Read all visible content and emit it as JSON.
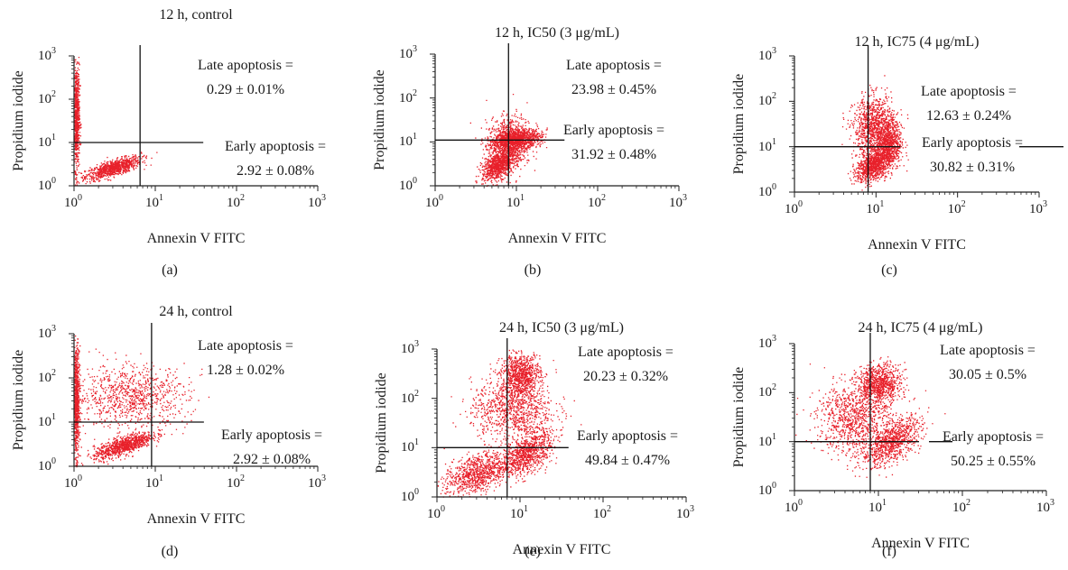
{
  "chart_data": [
    {
      "type": "scatter",
      "panel_label": "(a)",
      "title": "12 h, control",
      "xlabel": "Annexin V FITC",
      "ylabel": "Propidium iodide",
      "x_scale": "log",
      "y_scale": "log",
      "xlim": [
        1,
        1000
      ],
      "ylim": [
        1,
        1000
      ],
      "x_ticks": [
        {
          "base": "10",
          "exp": "0"
        },
        {
          "base": "10",
          "exp": "1"
        },
        {
          "base": "10",
          "exp": "2"
        },
        {
          "base": "10",
          "exp": "3"
        }
      ],
      "y_ticks": [
        {
          "base": "10",
          "exp": "0"
        },
        {
          "base": "10",
          "exp": "1"
        },
        {
          "base": "10",
          "exp": "2"
        },
        {
          "base": "10",
          "exp": "3"
        }
      ],
      "gate": {
        "x": 6.5,
        "y": 10
      },
      "point_color": "#e8202a",
      "clusters": [
        {
          "x_center": 3.0,
          "y_center": 2.6,
          "x_spread_decades": 0.17,
          "y_spread_decades": 0.09,
          "slope": 0.55
        },
        {
          "x_center": 1.05,
          "y_center": 40,
          "x_spread_decades": 0.02,
          "y_spread_decades": 0.6
        }
      ],
      "annotations": {
        "late_label": "Late apoptosis =",
        "late_value": "0.29 ± 0.01%",
        "early_label": "Early apoptosis =",
        "early_value": "2.92 ± 0.08%"
      }
    },
    {
      "type": "scatter",
      "panel_label": "(b)",
      "title": "12 h, IC50 (3 μg/mL)",
      "xlabel": "Annexin V FITC",
      "ylabel": "Propidium iodide",
      "x_scale": "log",
      "y_scale": "log",
      "xlim": [
        1,
        1000
      ],
      "ylim": [
        1,
        1000
      ],
      "x_ticks": [
        {
          "base": "10",
          "exp": "0"
        },
        {
          "base": "10",
          "exp": "1"
        },
        {
          "base": "10",
          "exp": "2"
        },
        {
          "base": "10",
          "exp": "3"
        }
      ],
      "y_ticks": [
        {
          "base": "10",
          "exp": "0"
        },
        {
          "base": "10",
          "exp": "1"
        },
        {
          "base": "10",
          "exp": "2"
        },
        {
          "base": "10",
          "exp": "3"
        }
      ],
      "gate": {
        "x": 8,
        "y": 11
      },
      "point_color": "#e8202a",
      "clusters": [
        {
          "x_center": 8,
          "y_center": 10,
          "x_spread_decades": 0.14,
          "y_spread_decades": 0.3,
          "slope": 0.4
        },
        {
          "x_center": 6,
          "y_center": 3,
          "x_spread_decades": 0.1,
          "y_spread_decades": 0.15,
          "slope": 0.8
        },
        {
          "x_center": 10,
          "y_center": 12,
          "x_spread_decades": 0.15,
          "y_spread_decades": 0.1,
          "slope": 0.2
        }
      ],
      "annotations": {
        "late_label": "Late apoptosis =",
        "late_value": "23.98 ± 0.45%",
        "early_label": "Early apoptosis =",
        "early_value": "31.92 ± 0.48%"
      }
    },
    {
      "type": "scatter",
      "panel_label": "(c)",
      "title": "12 h, IC75 (4 μg/mL)",
      "xlabel": "Annexin V FITC",
      "ylabel": "Propidium iodide",
      "x_scale": "log",
      "y_scale": "log",
      "xlim": [
        1,
        1000
      ],
      "ylim": [
        1,
        1000
      ],
      "x_ticks": [
        {
          "base": "10",
          "exp": "0"
        },
        {
          "base": "10",
          "exp": "1"
        },
        {
          "base": "10",
          "exp": "2"
        },
        {
          "base": "10",
          "exp": "3"
        }
      ],
      "y_ticks": [
        {
          "base": "10",
          "exp": "0"
        },
        {
          "base": "10",
          "exp": "1"
        },
        {
          "base": "10",
          "exp": "2"
        },
        {
          "base": "10",
          "exp": "3"
        }
      ],
      "gate": {
        "x": 8,
        "y": 10
      },
      "point_color": "#e8202a",
      "clusters": [
        {
          "x_center": 9,
          "y_center": 30,
          "x_spread_decades": 0.12,
          "y_spread_decades": 0.32,
          "slope": 0.3
        },
        {
          "x_center": 9,
          "y_center": 4,
          "x_spread_decades": 0.1,
          "y_spread_decades": 0.16,
          "slope": 0.8
        },
        {
          "x_center": 14,
          "y_center": 12,
          "x_spread_decades": 0.08,
          "y_spread_decades": 0.3,
          "slope": 0.2
        }
      ],
      "annotations": {
        "late_label": "Late apoptosis =",
        "late_value": "12.63 ± 0.24%",
        "early_label": "Early apoptosis =",
        "early_value": "30.82 ± 0.31%"
      }
    },
    {
      "type": "scatter",
      "panel_label": "(d)",
      "title": "24 h, control",
      "xlabel": "Annexin V FITC",
      "ylabel": "Propidium iodide",
      "x_scale": "log",
      "y_scale": "log",
      "xlim": [
        1,
        1000
      ],
      "ylim": [
        1,
        1000
      ],
      "x_ticks": [
        {
          "base": "10",
          "exp": "0"
        },
        {
          "base": "10",
          "exp": "1"
        },
        {
          "base": "10",
          "exp": "2"
        },
        {
          "base": "10",
          "exp": "3"
        }
      ],
      "y_ticks": [
        {
          "base": "10",
          "exp": "0"
        },
        {
          "base": "10",
          "exp": "1"
        },
        {
          "base": "10",
          "exp": "2"
        },
        {
          "base": "10",
          "exp": "3"
        }
      ],
      "gate": {
        "x": 9,
        "y": 10
      },
      "point_color": "#e8202a",
      "clusters": [
        {
          "x_center": 4,
          "y_center": 3,
          "x_spread_decades": 0.18,
          "y_spread_decades": 0.1,
          "slope": 0.6
        },
        {
          "x_center": 1.05,
          "y_center": 30,
          "x_spread_decades": 0.02,
          "y_spread_decades": 0.6
        },
        {
          "x_center": 5,
          "y_center": 40,
          "x_spread_decades": 0.35,
          "y_spread_decades": 0.35
        }
      ],
      "annotations": {
        "late_label": "Late apoptosis =",
        "late_value": "1.28 ± 0.02%",
        "early_label": "Early apoptosis =",
        "early_value": "2.92 ± 0.08%"
      }
    },
    {
      "type": "scatter",
      "panel_label": "(e)",
      "title": "24 h, IC50 (3 μg/mL)",
      "xlabel": "Annexin V FITC",
      "ylabel": "Propidium iodide",
      "x_scale": "log",
      "y_scale": "log",
      "xlim": [
        1,
        1000
      ],
      "ylim": [
        1,
        1000
      ],
      "x_ticks": [
        {
          "base": "10",
          "exp": "0"
        },
        {
          "base": "10",
          "exp": "1"
        },
        {
          "base": "10",
          "exp": "2"
        },
        {
          "base": "10",
          "exp": "3"
        }
      ],
      "y_ticks": [
        {
          "base": "10",
          "exp": "0"
        },
        {
          "base": "10",
          "exp": "1"
        },
        {
          "base": "10",
          "exp": "2"
        },
        {
          "base": "10",
          "exp": "3"
        }
      ],
      "gate": {
        "x": 7,
        "y": 10
      },
      "point_color": "#e8202a",
      "clusters": [
        {
          "x_center": 10,
          "y_center": 300,
          "x_spread_decades": 0.12,
          "y_spread_decades": 0.22,
          "slope": 0.1
        },
        {
          "x_center": 12,
          "y_center": 8,
          "x_spread_decades": 0.15,
          "y_spread_decades": 0.2,
          "slope": 0.7
        },
        {
          "x_center": 3,
          "y_center": 3,
          "x_spread_decades": 0.2,
          "y_spread_decades": 0.2,
          "slope": 0.5
        },
        {
          "x_center": 8,
          "y_center": 60,
          "x_spread_decades": 0.25,
          "y_spread_decades": 0.3
        }
      ],
      "annotations": {
        "late_label": "Late apoptosis =",
        "late_value": "20.23 ± 0.32%",
        "early_label": "Early apoptosis =",
        "early_value": "49.84 ± 0.47%"
      }
    },
    {
      "type": "scatter",
      "panel_label": "(f)",
      "title": "24 h, IC75 (4 μg/mL)",
      "xlabel": "Annexin V FITC",
      "ylabel": "Propidium iodide",
      "x_scale": "log",
      "y_scale": "log",
      "xlim": [
        1,
        1000
      ],
      "ylim": [
        1,
        1000
      ],
      "x_ticks": [
        {
          "base": "10",
          "exp": "0"
        },
        {
          "base": "10",
          "exp": "1"
        },
        {
          "base": "10",
          "exp": "2"
        },
        {
          "base": "10",
          "exp": "3"
        }
      ],
      "y_ticks": [
        {
          "base": "10",
          "exp": "0"
        },
        {
          "base": "10",
          "exp": "1"
        },
        {
          "base": "10",
          "exp": "2"
        },
        {
          "base": "10",
          "exp": "3"
        }
      ],
      "gate": {
        "x": 8,
        "y": 10
      },
      "point_color": "#e8202a",
      "clusters": [
        {
          "x_center": 10,
          "y_center": 150,
          "x_spread_decades": 0.13,
          "y_spread_decades": 0.2,
          "slope": 0.1
        },
        {
          "x_center": 14,
          "y_center": 10,
          "x_spread_decades": 0.18,
          "y_spread_decades": 0.2,
          "slope": 0.8
        },
        {
          "x_center": 5,
          "y_center": 30,
          "x_spread_decades": 0.22,
          "y_spread_decades": 0.35
        }
      ],
      "annotations": {
        "late_label": "Late apoptosis =",
        "late_value": "30.05 ± 0.5%",
        "early_label": "Early apoptosis =",
        "early_value": "50.25 ± 0.55%"
      }
    }
  ]
}
